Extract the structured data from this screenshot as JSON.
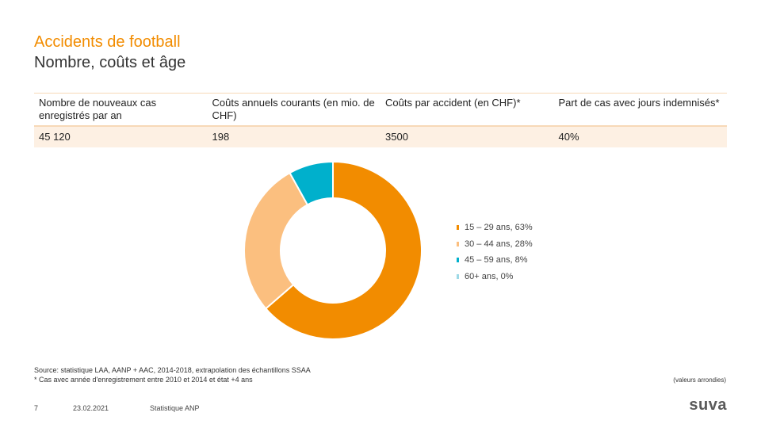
{
  "title": {
    "line1": "Accidents de football",
    "line2": "Nombre, coûts et âge"
  },
  "table": {
    "headers": [
      "Nombre de nouveaux cas enregistrés par an",
      "Coûts annuels courants (en mio. de CHF)",
      "Coûts par accident (en CHF)*",
      "Part de cas avec jours indemnisés*"
    ],
    "values": [
      "45 120",
      "198",
      "3500",
      "40%"
    ]
  },
  "chart_data": {
    "type": "pie",
    "variant": "donut",
    "categories": [
      "15 – 29 ans",
      "30 – 44 ans",
      "45 – 59 ans",
      "60+ ans"
    ],
    "values": [
      63,
      28,
      8,
      0
    ],
    "labels": [
      "15 – 29 ans, 63%",
      "30 – 44 ans, 28%",
      "45 – 59 ans, 8%",
      "60+ ans, 0%"
    ],
    "colors": [
      "#f28c00",
      "#fbbf7f",
      "#00b0cc",
      "#9dd9e6"
    ]
  },
  "source": {
    "line1": "Source: statistique LAA, AANP + AAC, 2014-2018, extrapolation des échantillons SSAA",
    "line2": "* Cas avec année d'enregistrement entre 2010 et 2014 et état +4 ans"
  },
  "rounded_note": "(valeurs arrondies)",
  "footer": {
    "page": "7",
    "date": "23.02.2021",
    "label": "Statistique ANP",
    "brand": "suva"
  }
}
